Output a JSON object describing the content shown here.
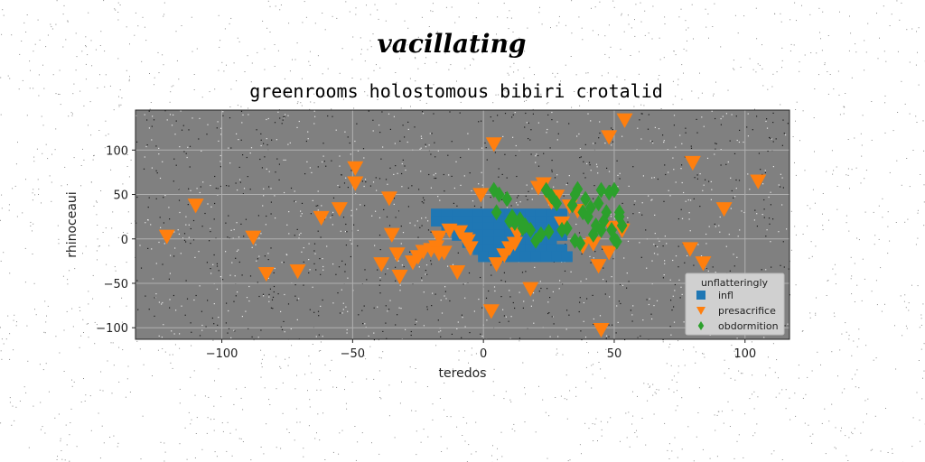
{
  "figure": {
    "suptitle": "vacillating",
    "background": "#ffffff"
  },
  "chart_data": {
    "type": "scatter",
    "title": "greenrooms holostomous bibiri crotalid",
    "xlabel": "teredos",
    "ylabel": "rhinoceaui",
    "xlim": [
      -133,
      117
    ],
    "ylim": [
      -113,
      145
    ],
    "xticks": [
      -100,
      -50,
      0,
      50,
      100
    ],
    "xtick_labels": [
      "−100",
      "−50",
      "0",
      "50",
      "100"
    ],
    "yticks": [
      -100,
      -50,
      0,
      50,
      100
    ],
    "ytick_labels": [
      "−100",
      "−50",
      "0",
      "50",
      "100"
    ],
    "grid": true,
    "plot_background": "#808080",
    "legend": {
      "title": "unflatteringly",
      "placement": "lower-right"
    },
    "series": [
      {
        "name": "infl",
        "marker": "square",
        "color": "#1f77b4",
        "x": [
          -18,
          -14,
          -10,
          -6,
          -2,
          2,
          6,
          10,
          14,
          18,
          22,
          26,
          30,
          -18,
          -14,
          -10,
          -6,
          -2,
          2,
          6,
          10,
          14,
          18,
          22,
          26,
          30,
          -14,
          -10,
          -6,
          -2,
          2,
          6,
          10,
          14,
          18,
          22,
          26,
          30,
          -10,
          -6,
          -2,
          2,
          6,
          10,
          14,
          18,
          22,
          26,
          30,
          -6,
          -2,
          2,
          6,
          10,
          14,
          18,
          22,
          26,
          -2,
          2,
          6,
          10,
          14,
          18,
          22,
          26,
          30,
          0,
          4,
          8,
          12,
          16,
          20,
          24,
          28,
          32
        ],
        "y": [
          28,
          28,
          28,
          28,
          28,
          28,
          28,
          28,
          28,
          28,
          28,
          28,
          28,
          20,
          20,
          20,
          20,
          20,
          20,
          20,
          20,
          20,
          20,
          20,
          20,
          20,
          12,
          12,
          12,
          12,
          12,
          12,
          12,
          12,
          12,
          12,
          12,
          12,
          4,
          4,
          4,
          4,
          4,
          4,
          4,
          4,
          4,
          4,
          4,
          -4,
          -4,
          -4,
          -4,
          -4,
          -4,
          -4,
          -4,
          -4,
          -12,
          -12,
          -12,
          -12,
          -12,
          -12,
          -12,
          -12,
          -12,
          -20,
          -20,
          -20,
          -20,
          -20,
          -20,
          -20,
          -20,
          -20
        ]
      },
      {
        "name": "presacrifice",
        "marker": "triangle-down",
        "color": "#ff7f0e",
        "x": [
          -121,
          -110,
          -88,
          -83,
          -71,
          -62,
          -55,
          -49,
          -49,
          -36,
          -35,
          -33,
          -32,
          -39,
          -27,
          -25,
          -23,
          -20,
          -18,
          -17,
          -15,
          -13,
          -10,
          -9,
          -7,
          -6,
          -5,
          4,
          5,
          3,
          10,
          12,
          18,
          21,
          23,
          28,
          33,
          36,
          38,
          44,
          45,
          48,
          49,
          53,
          54,
          80,
          79,
          84,
          92,
          105,
          48,
          30,
          42,
          26,
          13,
          8,
          -1,
          -17
        ],
        "y": [
          3,
          38,
          2,
          -39,
          -36,
          24,
          34,
          80,
          63,
          46,
          5,
          -17,
          -42,
          -28,
          -26,
          -20,
          -14,
          -12,
          -9,
          2,
          -15,
          10,
          -37,
          8,
          0,
          -2,
          -10,
          107,
          -28,
          -81,
          -10,
          -5,
          -56,
          58,
          62,
          48,
          37,
          32,
          -8,
          -30,
          -102,
          115,
          13,
          10,
          134,
          86,
          -11,
          -27,
          34,
          65,
          -15,
          18,
          -5,
          42,
          6,
          -18,
          50,
          -16
        ]
      },
      {
        "name": "obdormition",
        "marker": "diamond",
        "color": "#2ca02c",
        "x": [
          4,
          6,
          9,
          11,
          12,
          14,
          16,
          18,
          20,
          22,
          24,
          26,
          28,
          30,
          32,
          34,
          35,
          36,
          37,
          38,
          39,
          40,
          41,
          42,
          43,
          44,
          45,
          46,
          47,
          48,
          49,
          50,
          51,
          52,
          53,
          5,
          10,
          15,
          25,
          35,
          45,
          50,
          52
        ],
        "y": [
          55,
          50,
          45,
          25,
          18,
          22,
          15,
          10,
          -2,
          5,
          55,
          48,
          40,
          10,
          12,
          38,
          50,
          56,
          -5,
          30,
          45,
          25,
          35,
          5,
          15,
          40,
          55,
          20,
          30,
          52,
          10,
          0,
          -3,
          30,
          15,
          30,
          20,
          12,
          8,
          -2,
          10,
          55,
          25
        ]
      }
    ]
  }
}
